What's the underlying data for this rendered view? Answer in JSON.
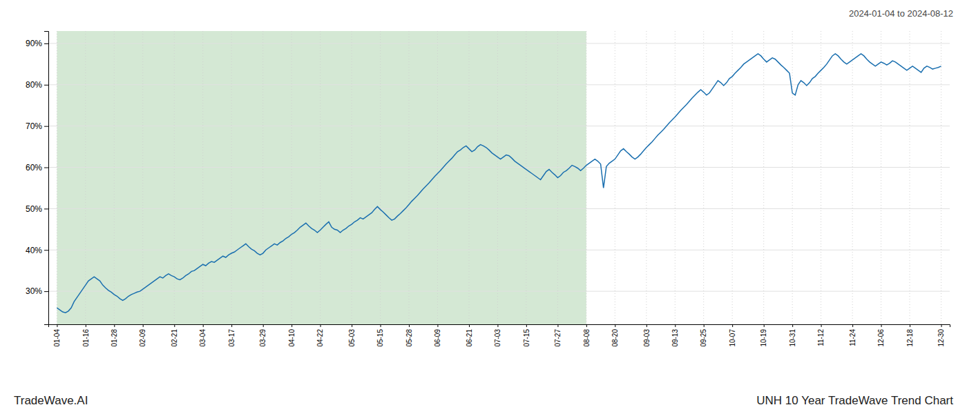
{
  "chart_data": {
    "type": "line",
    "title": "UNH 10 Year TradeWave Trend Chart",
    "subtitle": "2024-01-04 to 2024-08-12",
    "annotations": [
      "TradeWave.AI"
    ],
    "color": "#1a6faf",
    "grid": true,
    "shaded_region": {
      "from": "01-04",
      "to": "08-08",
      "color": "#d4e8d4"
    },
    "ylim": [
      22,
      93
    ],
    "yticks": [
      {
        "value": 30,
        "label": "30%"
      },
      {
        "value": 40,
        "label": "40%"
      },
      {
        "value": 50,
        "label": "50%"
      },
      {
        "value": 60,
        "label": "60%"
      },
      {
        "value": 70,
        "label": "70%"
      },
      {
        "value": 80,
        "label": "80%"
      },
      {
        "value": 90,
        "label": "90%"
      }
    ],
    "categories": [
      "01-04",
      null,
      null,
      null,
      null,
      null,
      null,
      null,
      null,
      null,
      "01-16",
      null,
      null,
      null,
      null,
      null,
      null,
      null,
      null,
      null,
      "01-28",
      null,
      null,
      null,
      null,
      null,
      null,
      null,
      null,
      null,
      "02-09",
      null,
      null,
      null,
      null,
      null,
      null,
      null,
      null,
      null,
      null,
      "02-21",
      null,
      null,
      null,
      null,
      null,
      null,
      null,
      null,
      null,
      "03-04",
      null,
      null,
      null,
      null,
      null,
      null,
      null,
      null,
      null,
      "03-17",
      null,
      null,
      null,
      null,
      null,
      null,
      null,
      null,
      null,
      null,
      "03-29",
      null,
      null,
      null,
      null,
      null,
      null,
      null,
      null,
      null,
      "04-10",
      null,
      null,
      null,
      null,
      null,
      null,
      null,
      null,
      null,
      "04-22",
      null,
      null,
      null,
      null,
      null,
      null,
      null,
      null,
      null,
      null,
      "05-03",
      null,
      null,
      null,
      null,
      null,
      null,
      null,
      null,
      null,
      "05-15",
      null,
      null,
      null,
      null,
      null,
      null,
      null,
      null,
      null,
      "05-28",
      null,
      null,
      null,
      null,
      null,
      null,
      null,
      null,
      null,
      "06-09",
      null,
      null,
      null,
      null,
      null,
      null,
      null,
      null,
      null,
      null,
      "06-21",
      null,
      null,
      null,
      null,
      null,
      null,
      null,
      null,
      null,
      "07-03",
      null,
      null,
      null,
      null,
      null,
      null,
      null,
      null,
      null,
      "07-15",
      null,
      null,
      null,
      null,
      null,
      null,
      null,
      null,
      null,
      null,
      "07-27",
      null,
      null,
      null,
      null,
      null,
      null,
      null,
      null,
      null,
      "08-08",
      null,
      null,
      null,
      null,
      null,
      null,
      null,
      null,
      null,
      "08-20",
      null,
      null,
      null,
      null,
      null,
      null,
      null,
      null,
      null,
      null,
      "09-03",
      null,
      null,
      null,
      null,
      null,
      null,
      null,
      null,
      null,
      "09-13",
      null,
      null,
      null,
      null,
      null,
      null,
      null,
      null,
      null,
      "09-25",
      null,
      null,
      null,
      null,
      null,
      null,
      null,
      null,
      null,
      "10-07",
      null,
      null,
      null,
      null,
      null,
      null,
      null,
      null,
      null,
      null,
      "10-19",
      null,
      null,
      null,
      null,
      null,
      null,
      null,
      null,
      null,
      "10-31",
      null,
      null,
      null,
      null,
      null,
      null,
      null,
      null,
      null,
      "11-12",
      null,
      null,
      null,
      null,
      null,
      null,
      null,
      null,
      null,
      null,
      "11-24",
      null,
      null,
      null,
      null,
      null,
      null,
      null,
      null,
      null,
      "12-06",
      null,
      null,
      null,
      null,
      null,
      null,
      null,
      null,
      null,
      "12-18",
      null,
      null,
      null,
      null,
      null,
      null,
      null,
      null,
      null,
      null,
      "12-30"
    ],
    "values": [
      26.0,
      25.5,
      25.0,
      24.8,
      25.2,
      26.0,
      27.5,
      28.5,
      29.5,
      30.5,
      31.5,
      32.5,
      33.0,
      33.5,
      33.0,
      32.5,
      31.5,
      30.8,
      30.2,
      29.8,
      29.2,
      28.8,
      28.2,
      27.8,
      28.2,
      28.8,
      29.2,
      29.5,
      29.8,
      30.0,
      30.5,
      31.0,
      31.5,
      32.0,
      32.5,
      33.0,
      33.5,
      33.2,
      33.8,
      34.2,
      33.8,
      33.5,
      33.0,
      32.8,
      33.2,
      33.8,
      34.2,
      34.8,
      35.0,
      35.5,
      36.0,
      36.5,
      36.2,
      36.8,
      37.2,
      37.0,
      37.5,
      38.0,
      38.5,
      38.2,
      38.8,
      39.2,
      39.5,
      40.0,
      40.5,
      41.0,
      41.5,
      40.8,
      40.2,
      39.8,
      39.2,
      38.8,
      39.2,
      40.0,
      40.5,
      41.0,
      41.5,
      41.2,
      41.8,
      42.2,
      42.8,
      43.2,
      43.8,
      44.2,
      44.8,
      45.5,
      46.0,
      46.5,
      45.8,
      45.2,
      44.8,
      44.2,
      44.8,
      45.5,
      46.2,
      46.8,
      45.5,
      45.0,
      44.8,
      44.2,
      44.8,
      45.2,
      45.8,
      46.2,
      46.8,
      47.2,
      47.8,
      47.5,
      48.0,
      48.5,
      49.0,
      49.8,
      50.5,
      49.8,
      49.2,
      48.5,
      47.8,
      47.2,
      47.5,
      48.2,
      48.8,
      49.5,
      50.2,
      51.0,
      51.8,
      52.5,
      53.2,
      54.0,
      54.8,
      55.5,
      56.2,
      57.0,
      57.8,
      58.5,
      59.2,
      60.0,
      60.8,
      61.5,
      62.2,
      63.0,
      63.8,
      64.2,
      64.8,
      65.2,
      64.5,
      63.8,
      64.2,
      65.0,
      65.5,
      65.2,
      64.8,
      64.2,
      63.5,
      63.0,
      62.5,
      62.0,
      62.5,
      63.0,
      62.8,
      62.2,
      61.5,
      61.0,
      60.5,
      60.0,
      59.5,
      59.0,
      58.5,
      58.0,
      57.5,
      57.0,
      58.0,
      59.0,
      59.5,
      58.8,
      58.2,
      57.5,
      58.0,
      58.8,
      59.2,
      59.8,
      60.5,
      60.2,
      59.8,
      59.2,
      59.8,
      60.5,
      61.0,
      61.5,
      62.0,
      61.5,
      60.8,
      55.0,
      60.2,
      61.0,
      61.5,
      62.0,
      63.0,
      64.0,
      64.5,
      63.8,
      63.2,
      62.5,
      62.0,
      62.5,
      63.2,
      64.0,
      64.8,
      65.5,
      66.2,
      67.0,
      67.8,
      68.5,
      69.2,
      70.0,
      70.8,
      71.5,
      72.2,
      73.0,
      73.8,
      74.5,
      75.2,
      76.0,
      76.8,
      77.5,
      78.2,
      78.8,
      78.2,
      77.5,
      78.0,
      79.0,
      80.0,
      81.0,
      80.5,
      79.8,
      80.5,
      81.5,
      82.0,
      82.8,
      83.5,
      84.2,
      85.0,
      85.5,
      86.0,
      86.5,
      87.0,
      87.5,
      87.0,
      86.2,
      85.5,
      86.0,
      86.5,
      86.2,
      85.5,
      84.8,
      84.2,
      83.5,
      82.8,
      78.0,
      77.5,
      80.0,
      81.0,
      80.5,
      79.8,
      80.5,
      81.5,
      82.0,
      82.8,
      83.5,
      84.2,
      85.0,
      86.0,
      87.0,
      87.5,
      87.0,
      86.2,
      85.5,
      85.0,
      85.5,
      86.0,
      86.5,
      87.0,
      87.5,
      87.0,
      86.2,
      85.5,
      85.0,
      84.5,
      85.0,
      85.5,
      85.2,
      84.8,
      85.2,
      85.8,
      85.5,
      85.0,
      84.5,
      84.0,
      83.5,
      84.0,
      84.5,
      84.0,
      83.5,
      83.0,
      84.0,
      84.5,
      84.2,
      83.8,
      84.0,
      84.2,
      84.5
    ]
  }
}
